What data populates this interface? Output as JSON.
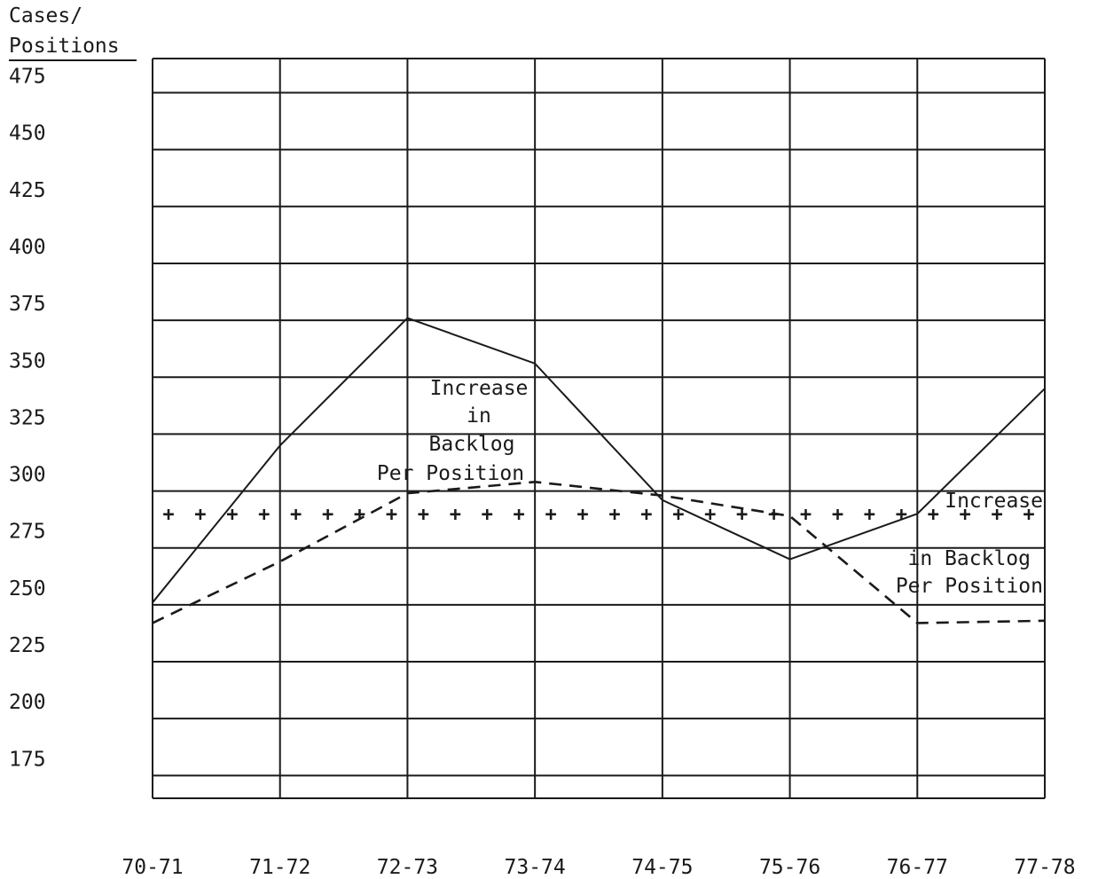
{
  "chart_data": {
    "type": "line",
    "ylabel": [
      "Cases/",
      "Positions"
    ],
    "categories": [
      "70-71",
      "71-72",
      "72-73",
      "73-74",
      "74-75",
      "75-76",
      "76-77",
      "77-78"
    ],
    "yticks": [
      475,
      450,
      425,
      400,
      375,
      350,
      325,
      300,
      275,
      250,
      225,
      200,
      175
    ],
    "ylim": [
      165,
      490
    ],
    "grid": true,
    "series": [
      {
        "style": "solid",
        "values": [
          251,
          320,
          376,
          356,
          296,
          270,
          290,
          345
        ]
      },
      {
        "style": "dashed",
        "values": [
          242,
          269,
          299,
          304,
          298,
          289,
          242,
          243
        ]
      },
      {
        "style": "plus-markers",
        "values": [
          290,
          290,
          290,
          290,
          290,
          290,
          290,
          290
        ]
      }
    ],
    "annotations": [
      {
        "lines": [
          "Increase",
          "in",
          "Backlog",
          "Per Position"
        ],
        "near": "72-73 to 73-74"
      },
      {
        "lines": [
          "Increase",
          "in Backlog",
          "Per Position"
        ],
        "near": "76-77 to 77-78"
      }
    ]
  }
}
